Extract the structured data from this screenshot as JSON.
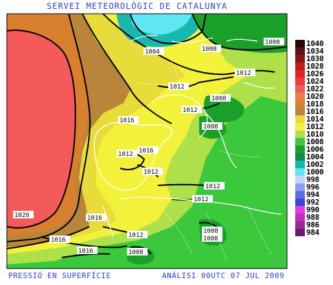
{
  "title": "SERVEI METEOROLÒGIC DE CATALUNYA",
  "footer_left": "PRESSIÓ EN SUPERFÍCIE",
  "footer_right": "ANÀLISI 00UTC 07 JUL 2009",
  "isobar_labels": [
    "1004",
    "1008",
    "1008",
    "1012",
    "1012",
    "1008",
    "1012",
    "1008",
    "1016",
    "1012",
    "1016",
    "1012",
    "1012",
    "1012",
    "1020",
    "1016",
    "1016",
    "1016",
    "1012",
    "1008",
    "1008",
    "1008"
  ],
  "legend": [
    {
      "label": "1040",
      "color": "#2a0808"
    },
    {
      "label": "1034",
      "color": "#5a1212"
    },
    {
      "label": "1030",
      "color": "#8b1515"
    },
    {
      "label": "1028",
      "color": "#c41a1a"
    },
    {
      "label": "1026",
      "color": "#e02222"
    },
    {
      "label": "1024",
      "color": "#f03a3a"
    },
    {
      "label": "1022",
      "color": "#f45a5a"
    },
    {
      "label": "1020",
      "color": "#f07a4a"
    },
    {
      "label": "1018",
      "color": "#d9802e"
    },
    {
      "label": "1016",
      "color": "#b8853a"
    },
    {
      "label": "1014",
      "color": "#e8dc3a"
    },
    {
      "label": "1012",
      "color": "#f2f23a"
    },
    {
      "label": "1010",
      "color": "#aee04a"
    },
    {
      "label": "1008",
      "color": "#3cc83c"
    },
    {
      "label": "1006",
      "color": "#1aa02a"
    },
    {
      "label": "1004",
      "color": "#178a4a"
    },
    {
      "label": "1002",
      "color": "#16b8b0"
    },
    {
      "label": "1000",
      "color": "#5fe6f0"
    },
    {
      "label": "998",
      "color": "#c8d4f8"
    },
    {
      "label": "996",
      "color": "#8aa0f0"
    },
    {
      "label": "994",
      "color": "#5a6ee8"
    },
    {
      "label": "992",
      "color": "#3a46d8"
    },
    {
      "label": "990",
      "color": "#e63ae6"
    },
    {
      "label": "988",
      "color": "#c42ac4"
    },
    {
      "label": "986",
      "color": "#9a2a9a"
    },
    {
      "label": "984",
      "color": "#6a1a6a"
    }
  ]
}
